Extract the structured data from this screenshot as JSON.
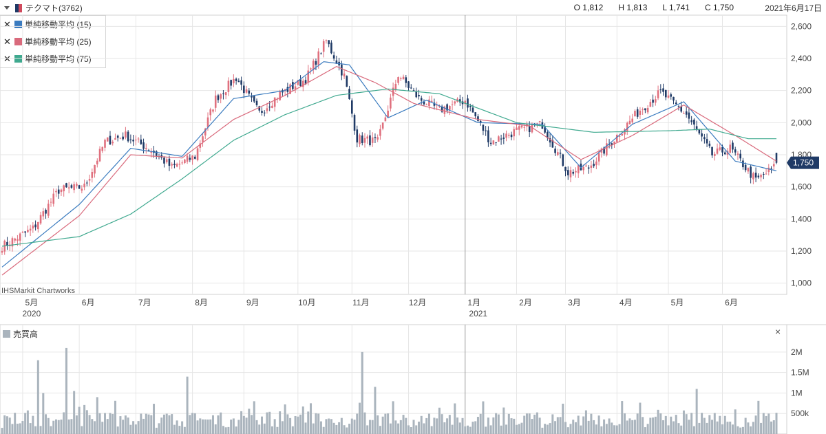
{
  "header": {
    "title": "テクマト(3762)",
    "open": "O 1,812",
    "high": "H 1,813",
    "low": "L 1,741",
    "close": "C 1,750",
    "date": "2021年6月17日"
  },
  "legend": [
    {
      "label": "単純移動平均 (15)",
      "color": "#3a7bbf"
    },
    {
      "label": "単純移動平均 (25)",
      "color": "#d96a7c"
    },
    {
      "label": "単純移動平均 (75)",
      "color": "#3fa98f"
    }
  ],
  "watermark": "IHSMarkit Chartworks",
  "last_price_label": "1,750",
  "volume_title": "売買高",
  "close_symbol": "×",
  "remove_symbol": "✕",
  "colors": {
    "up": "#e0707e",
    "down": "#1f3a66",
    "volume": "#aab4bd",
    "grid": "#e6e6e6",
    "price_tag": "#1f3a66"
  },
  "chart_data": [
    {
      "type": "candlestick",
      "x_tick_labels": [
        "5月",
        "6月",
        "7月",
        "8月",
        "9月",
        "10月",
        "11月",
        "12月",
        "1月",
        "2月",
        "3月",
        "4月",
        "5月",
        "6月"
      ],
      "year_labels": [
        "2020",
        "2021"
      ],
      "y_tick_labels": [
        "2,600",
        "2,400",
        "2,200",
        "2,000",
        "1,800",
        "1,600",
        "1,400",
        "1,200",
        "1,000"
      ],
      "ylim": [
        930,
        2670
      ],
      "close_anchors": [
        [
          0,
          1230
        ],
        [
          12,
          1340
        ],
        [
          22,
          1580
        ],
        [
          32,
          1600
        ],
        [
          40,
          1880
        ],
        [
          48,
          1920
        ],
        [
          58,
          1830
        ],
        [
          66,
          1720
        ],
        [
          75,
          1790
        ],
        [
          83,
          2150
        ],
        [
          91,
          2280
        ],
        [
          100,
          2060
        ],
        [
          108,
          2180
        ],
        [
          118,
          2270
        ],
        [
          126,
          2510
        ],
        [
          133,
          2290
        ],
        [
          138,
          1900
        ],
        [
          146,
          1880
        ],
        [
          154,
          2300
        ],
        [
          162,
          2150
        ],
        [
          170,
          2080
        ],
        [
          180,
          2140
        ],
        [
          190,
          1880
        ],
        [
          200,
          1950
        ],
        [
          210,
          1990
        ],
        [
          220,
          1690
        ],
        [
          228,
          1720
        ],
        [
          238,
          1900
        ],
        [
          248,
          2080
        ],
        [
          256,
          2190
        ],
        [
          266,
          2050
        ],
        [
          276,
          1800
        ],
        [
          283,
          1840
        ],
        [
          293,
          1640
        ],
        [
          300,
          1720
        ],
        [
          301,
          1750
        ]
      ],
      "series": [
        {
          "name": "単純移動平均 (15)",
          "anchors": [
            [
              0,
              1100
            ],
            [
              30,
              1490
            ],
            [
              50,
              1840
            ],
            [
              70,
              1790
            ],
            [
              90,
              2150
            ],
            [
              110,
              2200
            ],
            [
              125,
              2380
            ],
            [
              135,
              2360
            ],
            [
              150,
              2030
            ],
            [
              165,
              2140
            ],
            [
              185,
              2000
            ],
            [
              210,
              1990
            ],
            [
              225,
              1720
            ],
            [
              245,
              1990
            ],
            [
              265,
              2130
            ],
            [
              285,
              1760
            ],
            [
              301,
              1700
            ]
          ]
        },
        {
          "name": "単純移動平均 (25)",
          "anchors": [
            [
              0,
              1050
            ],
            [
              30,
              1420
            ],
            [
              50,
              1800
            ],
            [
              70,
              1780
            ],
            [
              90,
              2020
            ],
            [
              110,
              2170
            ],
            [
              130,
              2350
            ],
            [
              145,
              2250
            ],
            [
              160,
              2120
            ],
            [
              185,
              2020
            ],
            [
              205,
              1980
            ],
            [
              225,
              1770
            ],
            [
              245,
              1920
            ],
            [
              265,
              2110
            ],
            [
              285,
              1920
            ],
            [
              301,
              1760
            ]
          ]
        },
        {
          "name": "単純移動平均 (75)",
          "anchors": [
            [
              0,
              1230
            ],
            [
              30,
              1290
            ],
            [
              50,
              1430
            ],
            [
              70,
              1650
            ],
            [
              90,
              1890
            ],
            [
              110,
              2050
            ],
            [
              130,
              2170
            ],
            [
              150,
              2210
            ],
            [
              170,
              2180
            ],
            [
              200,
              2000
            ],
            [
              230,
              1940
            ],
            [
              260,
              1950
            ],
            [
              275,
              1960
            ],
            [
              290,
              1900
            ],
            [
              301,
              1900
            ]
          ]
        }
      ]
    },
    {
      "type": "bar",
      "title": "売買高",
      "y_tick_labels": [
        "2M",
        "1.5M",
        "1M",
        "500k"
      ],
      "ylim": [
        0,
        2300000
      ],
      "spikes": [
        [
          14,
          1800000
        ],
        [
          25,
          2100000
        ],
        [
          16,
          1000000
        ],
        [
          28,
          1050000
        ],
        [
          37,
          900000
        ],
        [
          72,
          1400000
        ],
        [
          98,
          800000
        ],
        [
          120,
          750000
        ],
        [
          140,
          2000000
        ],
        [
          145,
          1150000
        ],
        [
          152,
          800000
        ],
        [
          270,
          1100000
        ],
        [
          285,
          600000
        ]
      ]
    }
  ]
}
